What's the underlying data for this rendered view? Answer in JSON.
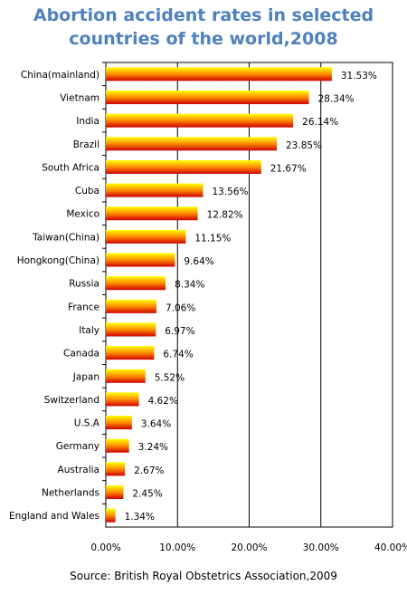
{
  "chart_data": {
    "type": "bar",
    "orientation": "horizontal",
    "title_line1": "Abortion accident rates in selected",
    "title_line2": "countries of the world,2008",
    "source": "Source: British Royal Obstetrics Association,2009",
    "categories": [
      "China(mainland)",
      "Vietnam",
      "India",
      "Brazil",
      "South Africa",
      "Cuba",
      "Mexico",
      "Taiwan(China)",
      "Hongkong(China)",
      "Russia",
      "France",
      "Italy",
      "Canada",
      "Japan",
      "Switzerland",
      "U.S.A",
      "Germany",
      "Australia",
      "Netherlands",
      "England and Wales"
    ],
    "values": [
      31.53,
      28.34,
      26.14,
      23.85,
      21.67,
      13.56,
      12.82,
      11.15,
      9.64,
      8.34,
      7.06,
      6.97,
      6.74,
      5.52,
      4.62,
      3.64,
      3.24,
      2.67,
      2.45,
      1.34
    ],
    "value_labels": [
      "31.53%",
      "28.34%",
      "26.14%",
      "23.85%",
      "21.67%",
      "13.56%",
      "12.82%",
      "11.15%",
      "9.64%",
      "8.34%",
      "7.06%",
      "6.97%",
      "6.74%",
      "5.52%",
      "4.62%",
      "3.64%",
      "3.24%",
      "2.67%",
      "2.45%",
      "1.34%"
    ],
    "xlim": [
      0,
      40
    ],
    "x_ticks": [
      0,
      10,
      20,
      30,
      40
    ],
    "x_tick_labels": [
      "0.00%",
      "10.00%",
      "20.00%",
      "30.00%",
      "40.00%"
    ],
    "grid": "vertical",
    "colors": {
      "bar_top": "#ffff00",
      "bar_mid": "#ff8c00",
      "bar_bottom": "#cc0000",
      "title": "#4f81bd",
      "gridline": "#000000"
    }
  }
}
